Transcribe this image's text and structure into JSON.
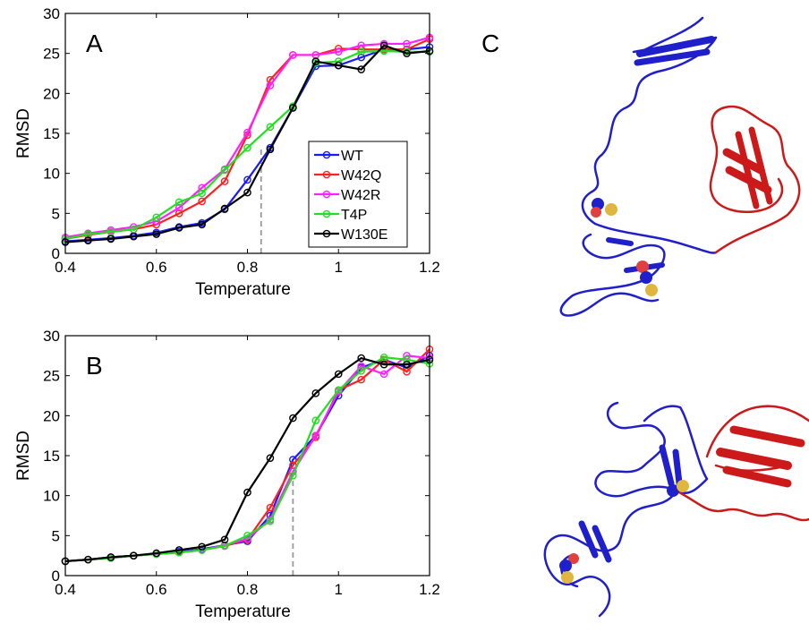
{
  "panel_labels": {
    "a": "A",
    "b": "B",
    "c": "C"
  },
  "colors": {
    "WT": "#1a1aff",
    "W42Q": "#ff2020",
    "W42R": "#ff20ff",
    "T4P": "#20e020",
    "W130E": "#000000",
    "protein_blue": "#1f1fcc",
    "protein_red": "#cc1a1a",
    "atom_gold": "#e0b640",
    "atom_red": "#e04040"
  },
  "chart_data": [
    {
      "type": "line",
      "panel": "A",
      "xlabel": "Temperature",
      "ylabel": "RMSD",
      "xlim": [
        0.4,
        1.2
      ],
      "ylim": [
        0,
        30
      ],
      "xticks": [
        "0.4",
        "0.6",
        "0.8",
        "1",
        "1.2"
      ],
      "yticks": [
        "0",
        "5",
        "10",
        "15",
        "20",
        "25",
        "30"
      ],
      "x": [
        0.4,
        0.45,
        0.5,
        0.55,
        0.6,
        0.65,
        0.7,
        0.75,
        0.8,
        0.85,
        0.9,
        0.95,
        1.0,
        1.05,
        1.1,
        1.15,
        1.2
      ],
      "legend_position": "center-right",
      "vline_x": 0.83,
      "series": [
        {
          "name": "WT",
          "values": [
            1.5,
            1.7,
            1.9,
            2.2,
            2.6,
            3.3,
            3.8,
            5.5,
            9.2,
            13.2,
            18.2,
            23.4,
            23.5,
            24.5,
            25.5,
            25.5,
            25.8
          ]
        },
        {
          "name": "W42Q",
          "values": [
            1.8,
            2.3,
            2.7,
            3.0,
            3.6,
            5.0,
            6.5,
            9.0,
            14.8,
            21.7,
            24.8,
            24.8,
            25.6,
            25.5,
            25.5,
            25.5,
            26.8
          ]
        },
        {
          "name": "W42R",
          "values": [
            2.0,
            2.5,
            2.9,
            3.3,
            4.0,
            5.7,
            8.2,
            10.5,
            15.1,
            21.0,
            24.8,
            24.8,
            25.2,
            26.0,
            26.2,
            26.2,
            27.0
          ]
        },
        {
          "name": "T4P",
          "values": [
            1.8,
            2.4,
            2.7,
            3.0,
            4.5,
            6.4,
            7.5,
            10.4,
            13.2,
            15.8,
            18.4,
            23.8,
            24.0,
            25.2,
            25.3,
            25.2,
            25.2
          ]
        },
        {
          "name": "W130E",
          "values": [
            1.4,
            1.6,
            1.8,
            2.1,
            2.4,
            3.2,
            3.6,
            5.6,
            7.6,
            13.0,
            18.2,
            24.0,
            23.5,
            23.0,
            26.0,
            25.0,
            25.3
          ]
        }
      ]
    },
    {
      "type": "line",
      "panel": "B",
      "xlabel": "Temperature",
      "ylabel": "RMSD",
      "xlim": [
        0.4,
        1.2
      ],
      "ylim": [
        0,
        30
      ],
      "xticks": [
        "0.4",
        "0.6",
        "0.8",
        "1",
        "1.2"
      ],
      "yticks": [
        "0",
        "5",
        "10",
        "15",
        "20",
        "25",
        "30"
      ],
      "x": [
        0.4,
        0.45,
        0.5,
        0.55,
        0.6,
        0.65,
        0.7,
        0.75,
        0.8,
        0.85,
        0.9,
        0.95,
        1.0,
        1.05,
        1.1,
        1.15,
        1.2
      ],
      "vline_x": 0.9,
      "series": [
        {
          "name": "WT",
          "values": [
            1.8,
            2.0,
            2.3,
            2.5,
            2.7,
            3.0,
            3.3,
            3.8,
            4.3,
            7.5,
            14.5,
            17.5,
            22.5,
            26.0,
            27.0,
            26.0,
            27.5
          ]
        },
        {
          "name": "W42Q",
          "values": [
            1.8,
            2.0,
            2.2,
            2.5,
            2.7,
            2.9,
            3.2,
            3.7,
            4.5,
            8.5,
            13.8,
            17.3,
            23.2,
            24.5,
            27.0,
            25.5,
            28.3
          ]
        },
        {
          "name": "W42R",
          "values": [
            1.8,
            2.0,
            2.2,
            2.5,
            2.7,
            2.9,
            3.2,
            3.8,
            4.6,
            7.0,
            13.0,
            17.5,
            23.0,
            26.2,
            25.2,
            27.5,
            27.2
          ]
        },
        {
          "name": "T4P",
          "values": [
            1.8,
            2.0,
            2.2,
            2.5,
            2.7,
            2.9,
            3.2,
            3.7,
            5.0,
            6.8,
            12.5,
            19.4,
            23.2,
            25.6,
            27.3,
            27.0,
            26.5
          ]
        },
        {
          "name": "W130E",
          "values": [
            1.8,
            2.0,
            2.3,
            2.5,
            2.8,
            3.2,
            3.6,
            4.5,
            10.4,
            14.7,
            19.7,
            22.8,
            25.2,
            27.2,
            26.4,
            26.4,
            27.0
          ]
        }
      ]
    }
  ]
}
